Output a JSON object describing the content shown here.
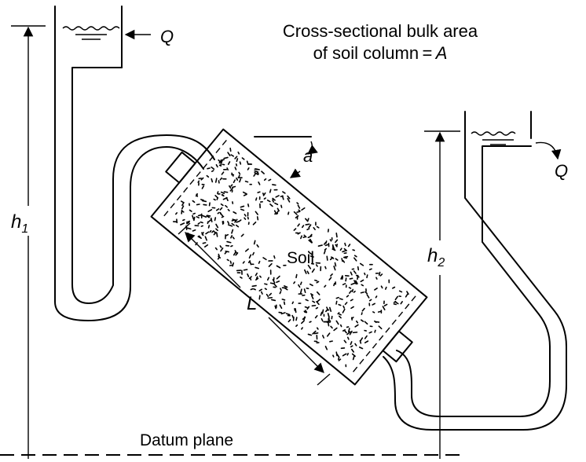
{
  "title_line1": "Cross-sectional bulk area",
  "title_line2_prefix": "of soil column = ",
  "title_line2_var": "A",
  "flow_in_label": "Q",
  "flow_out_label": "Q",
  "head1_letter": "h",
  "head1_sub": "1",
  "head2_letter": "h",
  "head2_sub": "2",
  "length_label": "L",
  "angle_label": "a",
  "soil_label": "Soil",
  "datum_label": "Datum plane"
}
